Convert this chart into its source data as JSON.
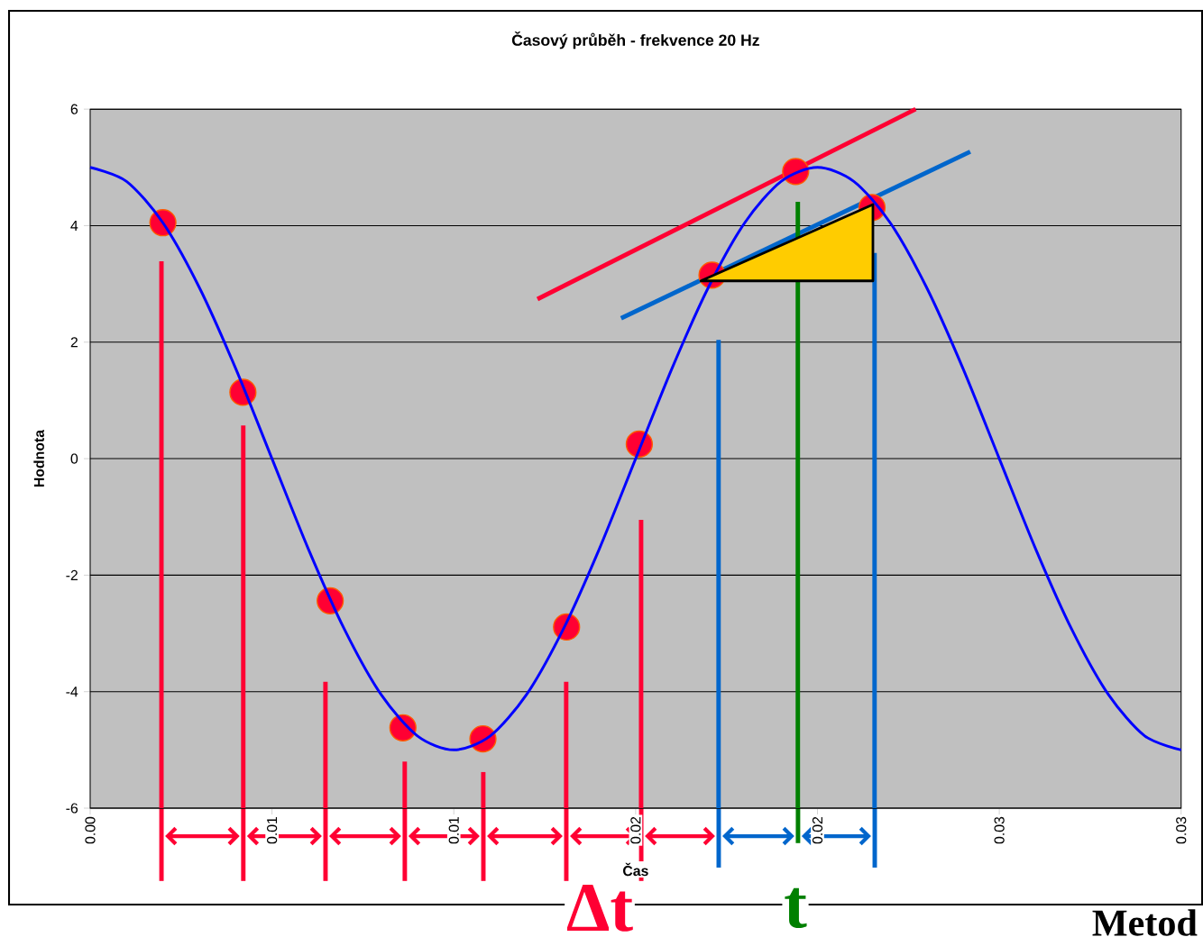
{
  "chart_data": {
    "type": "line",
    "title": "Časový průběh - frekvence 20 Hz",
    "xlabel": "Čas",
    "ylabel": "Hodnota",
    "xlim": [
      0,
      0.03
    ],
    "ylim": [
      -6,
      6
    ],
    "xticks": [
      {
        "value": 0,
        "label": "0.00"
      },
      {
        "value": 0.005,
        "label": "0.01"
      },
      {
        "value": 0.01,
        "label": "0.01"
      },
      {
        "value": 0.015,
        "label": "0.02"
      },
      {
        "value": 0.02,
        "label": "0.02"
      },
      {
        "value": 0.025,
        "label": "0.03"
      },
      {
        "value": 0.03,
        "label": "0.03"
      }
    ],
    "yticks": [
      -6,
      -4,
      -2,
      0,
      2,
      4,
      6
    ],
    "grid": "y",
    "series": [
      {
        "type": "line",
        "color": "#ff0033",
        "x": [
          0.0123,
          0.0227
        ],
        "values": [
          2.74,
          6
        ]
      },
      {
        "type": "line",
        "color": "#0066cc",
        "x": [
          0.0146,
          0.0242
        ],
        "values": [
          2.41,
          5.27
        ]
      },
      {
        "type": "line",
        "color": "#ff0033",
        "x": [
          0.00196,
          0.00196
        ],
        "values": [
          3.39,
          -6
        ]
      },
      {
        "type": "line",
        "color": "#ff0033",
        "x": [
          0.00421,
          0.00421
        ],
        "values": [
          0.57,
          -6
        ]
      },
      {
        "type": "line",
        "color": "#ff0033",
        "x": [
          0.00647,
          0.00647
        ],
        "values": [
          -3.83,
          -6
        ]
      },
      {
        "type": "line",
        "color": "#ff0033",
        "x": [
          0.00865,
          0.00865
        ],
        "values": [
          -5.2,
          -6
        ]
      },
      {
        "type": "line",
        "color": "#ff0033",
        "x": [
          0.01081,
          0.01081
        ],
        "values": [
          -5.38,
          -6
        ]
      },
      {
        "type": "line",
        "color": "#ff0033",
        "x": [
          0.01309,
          0.01309
        ],
        "values": [
          -3.83,
          -6
        ]
      },
      {
        "type": "line",
        "color": "#ff0033",
        "x": [
          0.01515,
          0.01515
        ],
        "values": [
          -1.05,
          -6
        ]
      },
      {
        "type": "line",
        "color": "#0066cc",
        "x": [
          0.01728,
          0.01728
        ],
        "values": [
          2.04,
          -6
        ]
      },
      {
        "type": "line",
        "color": "#008000",
        "x": [
          0.01946,
          0.01946
        ],
        "values": [
          4.41,
          -6
        ]
      },
      {
        "type": "line",
        "color": "#0066cc",
        "x": [
          0.02157,
          0.02157
        ],
        "values": [
          3.53,
          -6
        ]
      },
      {
        "type": "scatter",
        "color": "#ff0033",
        "marker": "circle",
        "x": [
          0.002,
          0.0042,
          0.0066,
          0.0086,
          0.0108,
          0.0131,
          0.0151,
          0.0171,
          0.0194,
          0.0215
        ],
        "values": [
          4.05,
          1.14,
          -2.44,
          -4.62,
          -4.81,
          -2.89,
          0.25,
          3.15,
          4.93,
          4.31
        ]
      },
      {
        "color": "#0000ff",
        "x": [
          0,
          0.001,
          0.002,
          0.003,
          0.004,
          0.005,
          0.006,
          0.007,
          0.008,
          0.009,
          0.01,
          0.011,
          0.012,
          0.013,
          0.014,
          0.015,
          0.016,
          0.017,
          0.018,
          0.019,
          0.02,
          0.021,
          0.022,
          0.023,
          0.024,
          0.025,
          0.026,
          0.027,
          0.028,
          0.029,
          0.03
        ],
        "values": [
          5,
          4.76,
          4.05,
          2.94,
          1.55,
          0,
          -1.55,
          -2.94,
          -4.05,
          -4.76,
          -5,
          -4.76,
          -4.05,
          -2.94,
          -1.55,
          0,
          1.55,
          2.94,
          4.05,
          4.76,
          5,
          4.76,
          4.05,
          2.94,
          1.55,
          0,
          -1.55,
          -2.94,
          -4.05,
          -4.76,
          -5
        ]
      }
    ],
    "annotations": [
      "Δt",
      "t",
      "Metod"
    ]
  }
}
